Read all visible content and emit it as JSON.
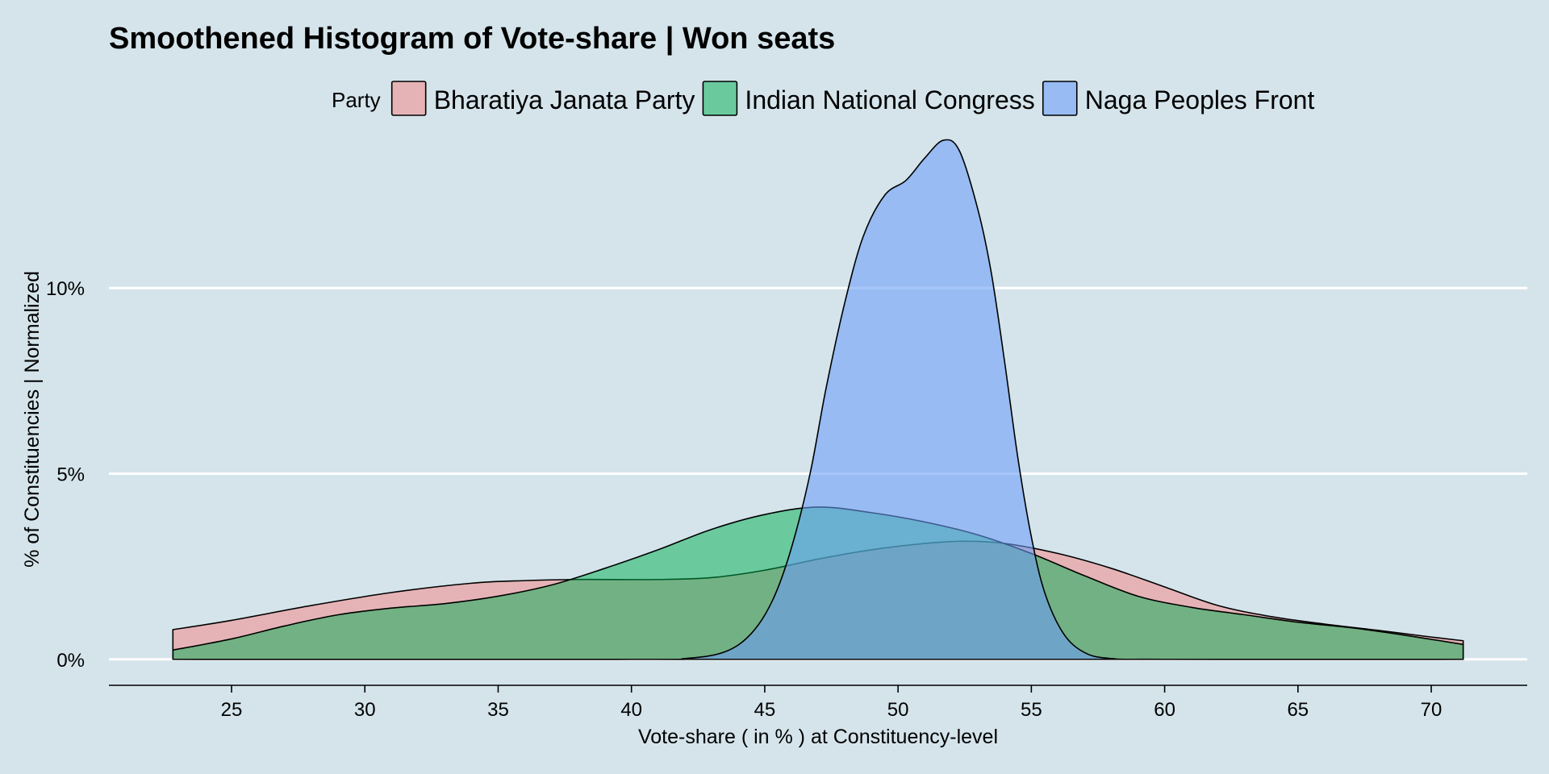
{
  "chart_data": {
    "type": "area",
    "title": "Smoothened Histogram of Vote-share |  Won seats",
    "xlabel": "Vote-share ( in % ) at Constituency-level",
    "ylabel": "% of Constituencies | Normalized",
    "legend_title": "Party",
    "legend_position": "top",
    "xlim": [
      20.4,
      73.6
    ],
    "ylim": [
      -0.7,
      14.5
    ],
    "x_ticks": [
      25,
      30,
      35,
      40,
      45,
      50,
      55,
      60,
      65,
      70
    ],
    "x_tick_labels": [
      "25",
      "30",
      "35",
      "40",
      "45",
      "50",
      "55",
      "60",
      "65",
      "70"
    ],
    "y_ticks": [
      0,
      5,
      10
    ],
    "y_tick_labels": [
      "0%",
      "5%",
      "10%"
    ],
    "grid": "horizontal major lines (white)",
    "background_color": "#d5e4eb",
    "series": [
      {
        "name": "Bharatiya Janata Party",
        "color": "#f28a8a",
        "opacity": 0.55,
        "points": [
          [
            22.8,
            0.8
          ],
          [
            25,
            1.05
          ],
          [
            28,
            1.45
          ],
          [
            31,
            1.8
          ],
          [
            34,
            2.05
          ],
          [
            36,
            2.12
          ],
          [
            38,
            2.15
          ],
          [
            41,
            2.15
          ],
          [
            43,
            2.2
          ],
          [
            45,
            2.4
          ],
          [
            47,
            2.7
          ],
          [
            49,
            2.95
          ],
          [
            51,
            3.12
          ],
          [
            52.5,
            3.18
          ],
          [
            54,
            3.12
          ],
          [
            56,
            2.85
          ],
          [
            58,
            2.45
          ],
          [
            60,
            1.95
          ],
          [
            62,
            1.45
          ],
          [
            64,
            1.15
          ],
          [
            66,
            0.95
          ],
          [
            68,
            0.78
          ],
          [
            70,
            0.6
          ],
          [
            71.2,
            0.5
          ]
        ]
      },
      {
        "name": "Indian National Congress",
        "color": "#00b050",
        "opacity": 0.5,
        "points": [
          [
            22.8,
            0.25
          ],
          [
            25,
            0.55
          ],
          [
            27,
            0.9
          ],
          [
            29,
            1.2
          ],
          [
            31,
            1.38
          ],
          [
            33,
            1.5
          ],
          [
            35,
            1.7
          ],
          [
            37,
            2.0
          ],
          [
            39,
            2.45
          ],
          [
            41,
            2.95
          ],
          [
            43,
            3.5
          ],
          [
            45,
            3.9
          ],
          [
            47,
            4.1
          ],
          [
            49,
            3.95
          ],
          [
            51,
            3.7
          ],
          [
            53,
            3.35
          ],
          [
            55,
            2.85
          ],
          [
            57,
            2.25
          ],
          [
            59,
            1.7
          ],
          [
            61,
            1.4
          ],
          [
            63,
            1.2
          ],
          [
            65,
            1.0
          ],
          [
            67,
            0.85
          ],
          [
            69,
            0.65
          ],
          [
            71.2,
            0.4
          ]
        ]
      },
      {
        "name": "Naga Peoples Front",
        "color": "#6b9cf7",
        "opacity": 0.58,
        "points": [
          [
            22.8,
            0
          ],
          [
            40,
            0
          ],
          [
            42,
            0.02
          ],
          [
            43.5,
            0.2
          ],
          [
            44.5,
            0.7
          ],
          [
            45.3,
            1.6
          ],
          [
            46,
            3.0
          ],
          [
            46.7,
            5.0
          ],
          [
            47.3,
            7.3
          ],
          [
            48,
            9.6
          ],
          [
            48.7,
            11.4
          ],
          [
            49.5,
            12.5
          ],
          [
            50.3,
            12.9
          ],
          [
            51,
            13.5
          ],
          [
            51.7,
            13.98
          ],
          [
            52.3,
            13.7
          ],
          [
            53,
            12.1
          ],
          [
            53.5,
            10.4
          ],
          [
            54,
            8.0
          ],
          [
            54.5,
            5.4
          ],
          [
            55,
            3.3
          ],
          [
            55.5,
            1.8
          ],
          [
            56.2,
            0.7
          ],
          [
            57,
            0.18
          ],
          [
            58,
            0.02
          ],
          [
            60,
            0
          ],
          [
            71.2,
            0
          ]
        ]
      }
    ]
  }
}
